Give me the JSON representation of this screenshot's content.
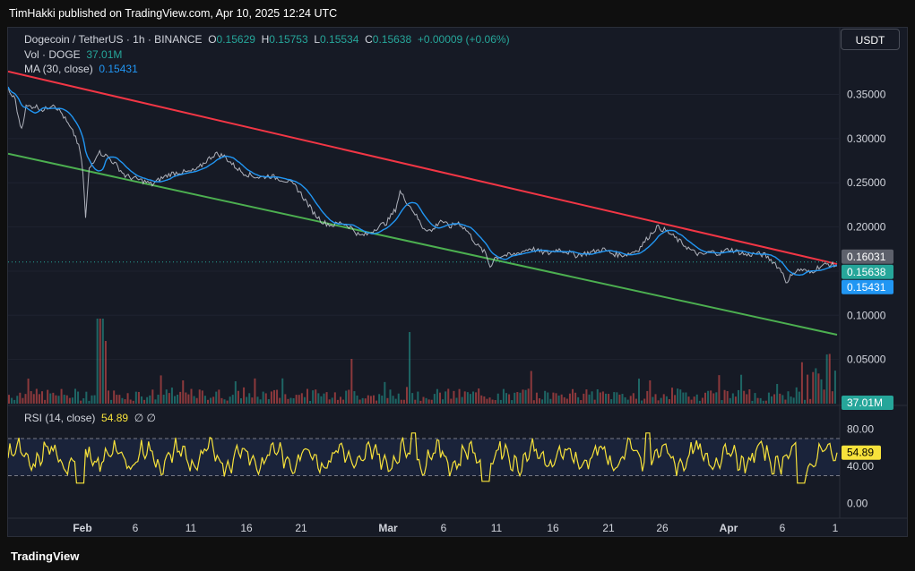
{
  "header": {
    "text": "TimHakki published on TradingView.com, Apr 10, 2025 12:24 UTC"
  },
  "legend": {
    "symbol": "Dogecoin / TetherUS · 1h · BINANCE",
    "o_label": "O",
    "o": "0.15629",
    "h_label": "H",
    "h": "0.15753",
    "l_label": "L",
    "l": "0.15534",
    "c_label": "C",
    "c": "0.15638",
    "change": "+0.00009 (+0.06%)",
    "vol_label": "Vol · DOGE",
    "vol": "37.01M",
    "ma_label": "MA (30, close)",
    "ma": "0.15431",
    "rsi_label": "RSI (14, close)",
    "rsi": "54.89",
    "rsi_extra": "∅ ∅"
  },
  "currency_button": "USDT",
  "footer": {
    "logo": "TradingView"
  },
  "colors": {
    "up": "#26a69a",
    "down": "#ef5350",
    "ma": "#2196f3",
    "resistance": "#f23645",
    "support": "#4caf50",
    "rsi": "#f7e23b"
  },
  "chart_data": [
    {
      "type": "line",
      "title": "Dogecoin / TetherUS · 1h · BINANCE",
      "price_axis": {
        "ticks": [
          0.35,
          0.3,
          0.25,
          0.2,
          0.15,
          0.1,
          0.05
        ],
        "tick_labels": [
          "0.35000",
          "0.30000",
          "0.25000",
          "0.20000",
          "",
          "0.10000",
          "0.05000"
        ],
        "ylim": [
          0.0,
          0.385
        ]
      },
      "time_axis": {
        "labels": [
          "Feb",
          "6",
          "11",
          "16",
          "21",
          "Mar",
          "6",
          "11",
          "16",
          "21",
          "26",
          "Apr",
          "6",
          "1"
        ]
      },
      "price_labels": [
        {
          "value": 0.16031,
          "text": "0.16031",
          "color": "#5d606b"
        },
        {
          "value": 0.15638,
          "text": "0.15638",
          "color": "#26a69a"
        },
        {
          "value": 0.15431,
          "text": "0.15431",
          "color": "#2196f3"
        }
      ],
      "vol_label": {
        "text": "37.01M",
        "color": "#26a69a"
      },
      "price_path": [
        [
          0,
          0.357
        ],
        [
          0.3,
          0.35
        ],
        [
          0.8,
          0.345
        ],
        [
          1.2,
          0.32
        ],
        [
          1.5,
          0.312
        ],
        [
          2,
          0.336
        ],
        [
          3,
          0.337
        ],
        [
          4,
          0.332
        ],
        [
          5,
          0.34
        ],
        [
          6,
          0.328
        ],
        [
          7,
          0.31
        ],
        [
          7.5,
          0.302
        ],
        [
          8,
          0.285
        ],
        [
          8.3,
          0.262
        ],
        [
          8.6,
          0.21
        ],
        [
          9,
          0.265
        ],
        [
          10,
          0.285
        ],
        [
          11,
          0.28
        ],
        [
          12,
          0.27
        ],
        [
          13,
          0.258
        ],
        [
          14,
          0.255
        ],
        [
          15,
          0.252
        ],
        [
          16,
          0.248
        ],
        [
          17,
          0.255
        ],
        [
          18,
          0.26
        ],
        [
          19,
          0.262
        ],
        [
          20,
          0.262
        ],
        [
          21,
          0.265
        ],
        [
          22,
          0.275
        ],
        [
          23,
          0.283
        ],
        [
          24,
          0.28
        ],
        [
          25,
          0.27
        ],
        [
          26,
          0.262
        ],
        [
          27,
          0.258
        ],
        [
          28,
          0.256
        ],
        [
          29,
          0.258
        ],
        [
          30,
          0.255
        ],
        [
          31,
          0.252
        ],
        [
          32,
          0.245
        ],
        [
          33,
          0.23
        ],
        [
          34,
          0.215
        ],
        [
          35,
          0.205
        ],
        [
          36,
          0.202
        ],
        [
          37,
          0.205
        ],
        [
          38,
          0.2
        ],
        [
          39,
          0.19
        ],
        [
          40,
          0.192
        ],
        [
          41,
          0.2
        ],
        [
          42,
          0.205
        ],
        [
          43,
          0.22
        ],
        [
          43.5,
          0.24
        ],
        [
          44,
          0.232
        ],
        [
          45,
          0.218
        ],
        [
          46,
          0.2
        ],
        [
          47,
          0.195
        ],
        [
          48,
          0.208
        ],
        [
          49,
          0.2
        ],
        [
          50,
          0.205
        ],
        [
          51,
          0.195
        ],
        [
          52,
          0.18
        ],
        [
          53,
          0.17
        ],
        [
          53.5,
          0.155
        ],
        [
          54,
          0.165
        ],
        [
          55,
          0.168
        ],
        [
          56,
          0.168
        ],
        [
          57,
          0.172
        ],
        [
          58,
          0.176
        ],
        [
          59,
          0.172
        ],
        [
          60,
          0.17
        ],
        [
          61,
          0.175
        ],
        [
          62,
          0.172
        ],
        [
          63,
          0.168
        ],
        [
          64,
          0.17
        ],
        [
          65,
          0.172
        ],
        [
          66,
          0.175
        ],
        [
          67,
          0.17
        ],
        [
          68,
          0.168
        ],
        [
          69,
          0.17
        ],
        [
          70,
          0.175
        ],
        [
          71,
          0.188
        ],
        [
          72,
          0.2
        ],
        [
          73,
          0.196
        ],
        [
          74,
          0.188
        ],
        [
          75,
          0.18
        ],
        [
          76,
          0.172
        ],
        [
          77,
          0.168
        ],
        [
          78,
          0.172
        ],
        [
          79,
          0.17
        ],
        [
          80,
          0.175
        ],
        [
          81,
          0.172
        ],
        [
          82,
          0.168
        ],
        [
          83,
          0.17
        ],
        [
          84,
          0.168
        ],
        [
          85,
          0.16
        ],
        [
          86,
          0.148
        ],
        [
          86.5,
          0.135
        ],
        [
          87,
          0.148
        ],
        [
          88,
          0.152
        ],
        [
          89,
          0.148
        ],
        [
          90,
          0.155
        ],
        [
          91,
          0.158
        ],
        [
          92,
          0.156
        ]
      ],
      "resistance_line": [
        [
          0,
          0.376
        ],
        [
          92,
          0.158
        ]
      ],
      "support_line": [
        [
          0,
          0.283
        ],
        [
          92,
          0.078
        ]
      ]
    },
    {
      "type": "line",
      "title": "RSI (14, close)",
      "ticks": [
        80,
        40,
        0
      ],
      "tick_labels": [
        "80.00",
        "40.00",
        "0.00"
      ],
      "ylim": [
        -8,
        96
      ],
      "band": [
        70,
        30
      ],
      "current": 54.89
    }
  ]
}
